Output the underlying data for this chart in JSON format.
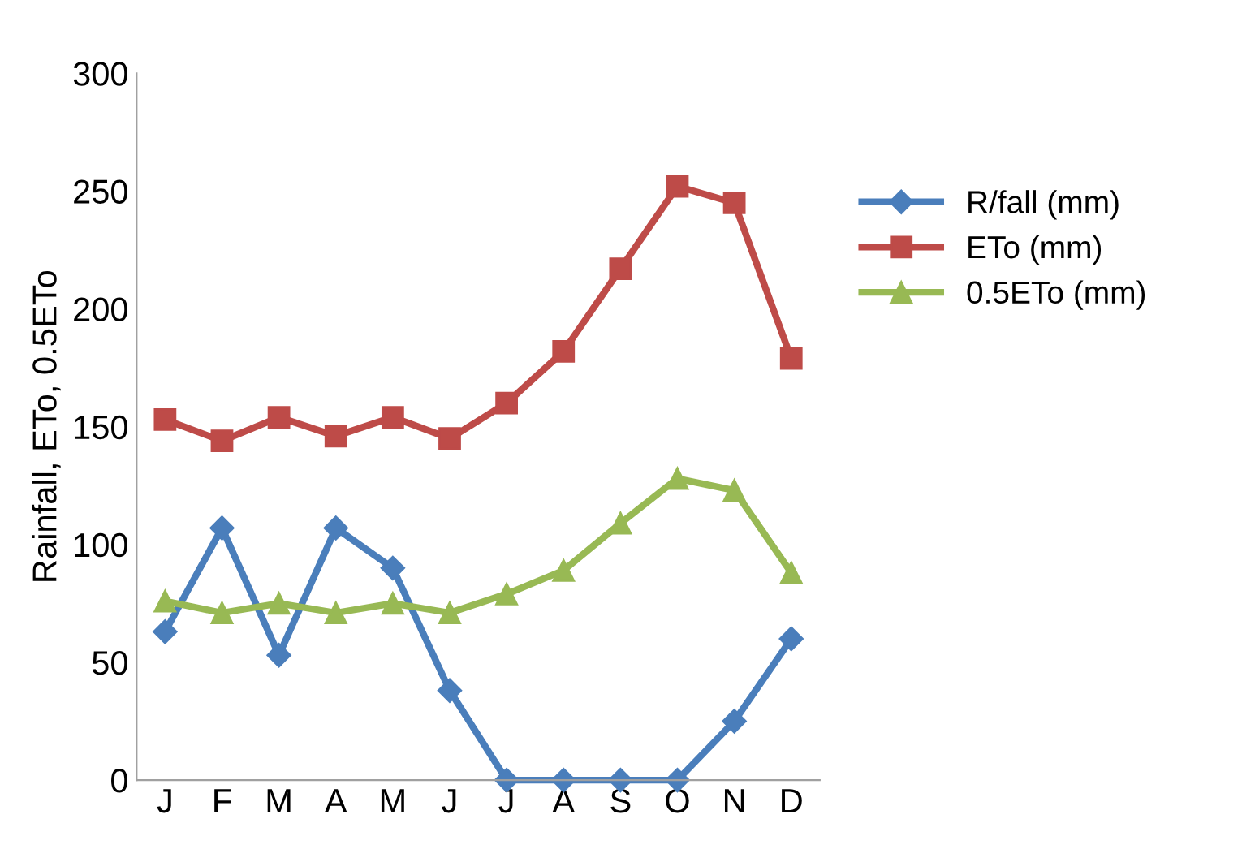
{
  "chart_data": {
    "type": "line",
    "ylabel": "Rainfall, ETo, 0.5ETo",
    "categories": [
      "J",
      "F",
      "M",
      "A",
      "M",
      "J",
      "J",
      "A",
      "S",
      "O",
      "N",
      "D"
    ],
    "series": [
      {
        "name": "R/fall (mm)",
        "color": "#4a7ebb",
        "marker": "diamond",
        "values": [
          63,
          107,
          53,
          107,
          90,
          38,
          0,
          0,
          0,
          0,
          25,
          60
        ]
      },
      {
        "name": "ETo (mm)",
        "color": "#be4b48",
        "marker": "square",
        "values": [
          153,
          144,
          154,
          146,
          154,
          145,
          160,
          182,
          217,
          252,
          245,
          179
        ]
      },
      {
        "name": "0.5ETo (mm)",
        "color": "#98b954",
        "marker": "triangle",
        "values": [
          76,
          71,
          75,
          71,
          75,
          71,
          79,
          89,
          109,
          128,
          123,
          88
        ]
      }
    ],
    "ylim": [
      0,
      300
    ],
    "yticks": [
      0,
      50,
      100,
      150,
      200,
      250,
      300
    ],
    "grid": false,
    "legend": "right",
    "line_style": "solid"
  }
}
